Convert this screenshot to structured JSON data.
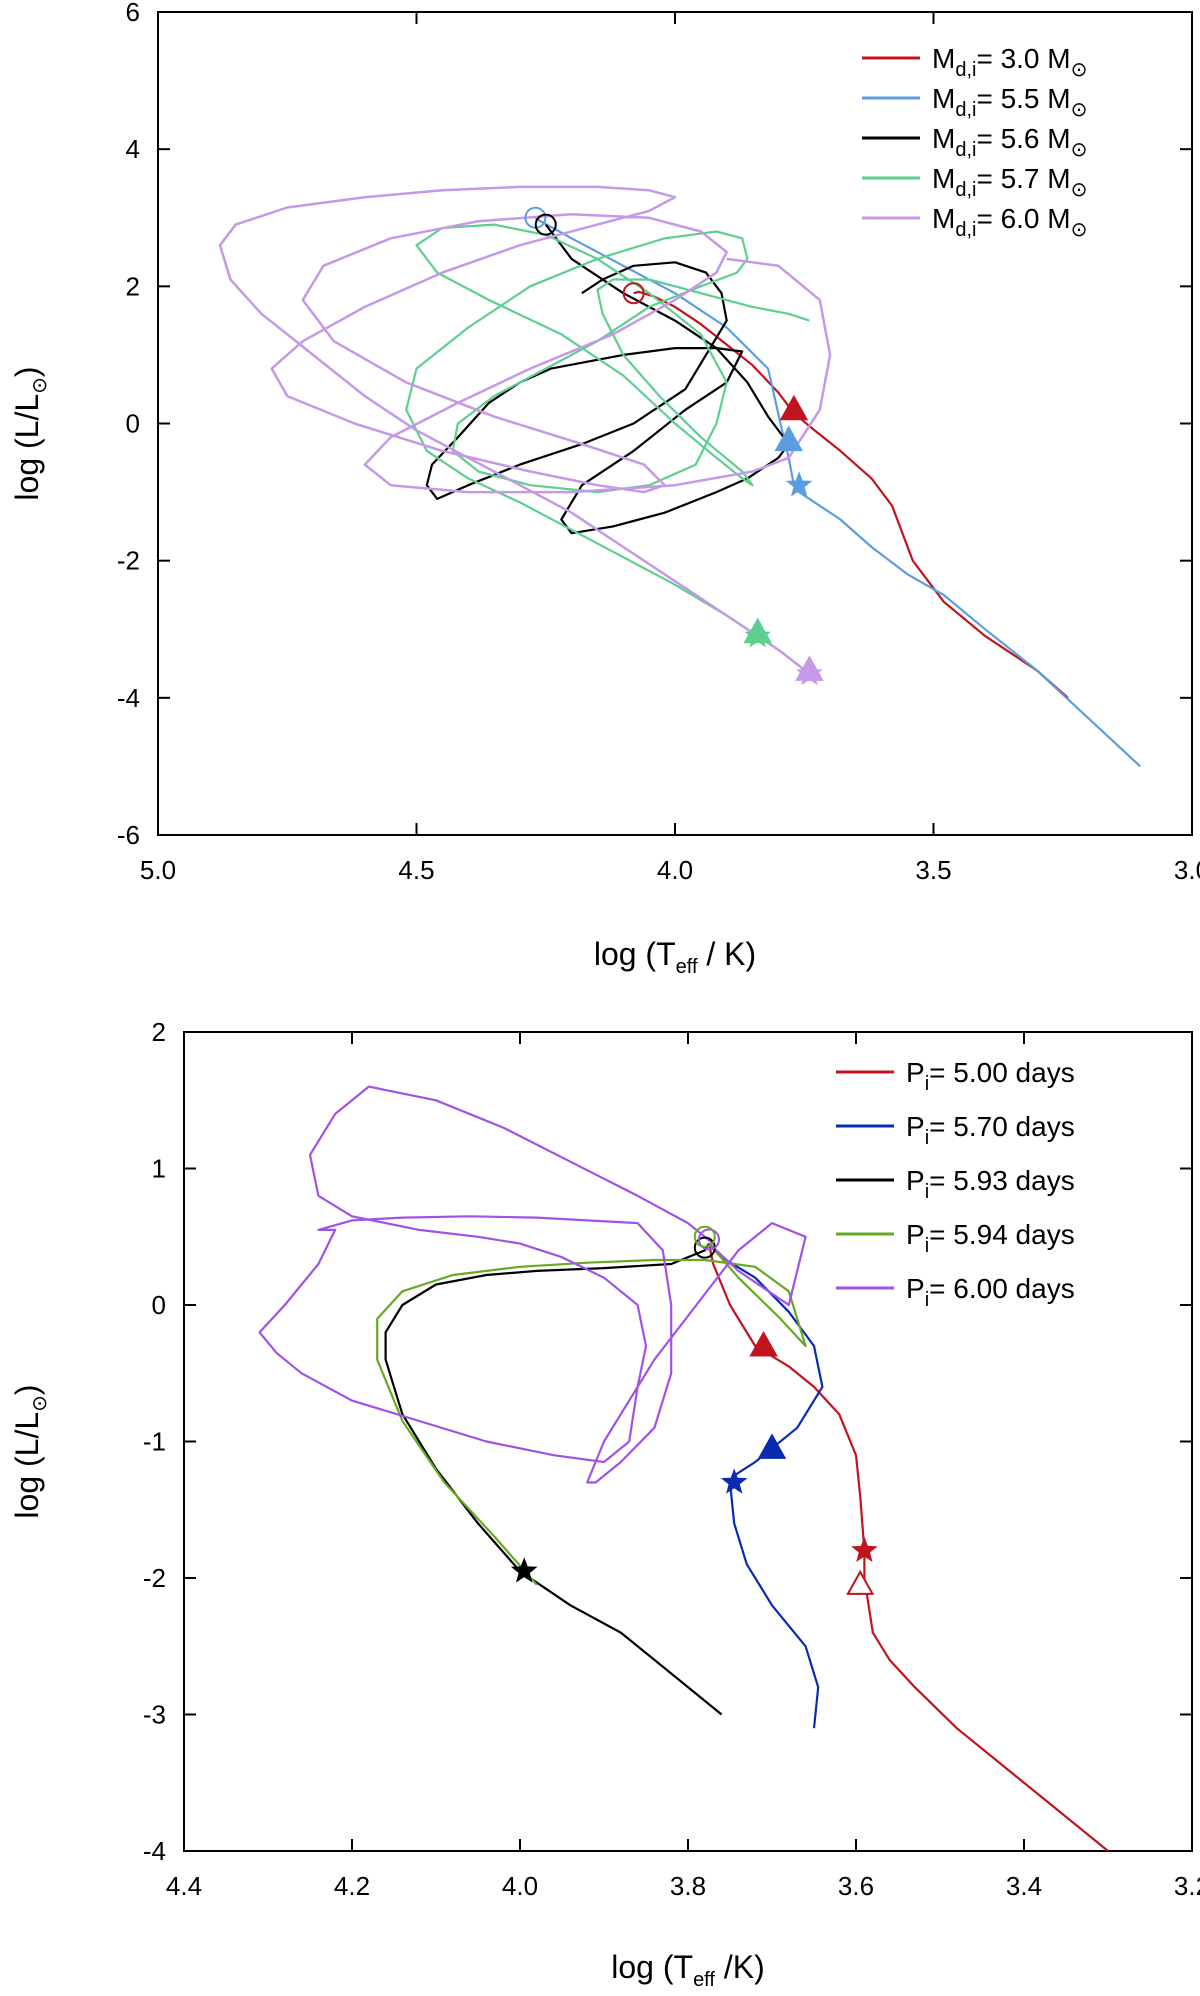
{
  "chart_data": [
    {
      "type": "line",
      "title": "",
      "xlabel": {
        "main": "log (T",
        "sub": "eff",
        "tail": " / K)"
      },
      "ylabel": {
        "main": "log (L/L",
        "sub": "⊙",
        "tail": ")"
      },
      "xlim": [
        5.0,
        3.0
      ],
      "ylim": [
        -6,
        6
      ],
      "xticks": [
        5.0,
        4.5,
        4.0,
        3.5,
        3.0
      ],
      "xtick_labels": [
        "5.0",
        "4.5",
        "4.0",
        "3.5",
        "3.0"
      ],
      "yticks": [
        -6,
        -4,
        -2,
        0,
        2,
        4,
        6
      ],
      "ytick_labels": [
        "-6",
        "-4",
        "-2",
        "0",
        "2",
        "4",
        "6"
      ],
      "legend_position": "top-right",
      "series": [
        {
          "name": "M = 3.0 M",
          "label_main": "M",
          "label_sub": "d,i",
          "label_mid": "= 3.0 M",
          "label_sub2": "⊙",
          "label_end": "",
          "color": "#c0141e",
          "x": [
            3.24,
            3.3,
            3.4,
            3.48,
            3.54,
            3.58,
            3.62,
            3.68,
            3.73,
            3.77,
            3.8,
            3.85,
            3.9,
            3.95,
            4.0,
            4.04,
            4.07,
            4.08
          ],
          "y": [
            -4.0,
            -3.6,
            -3.1,
            -2.6,
            -2.0,
            -1.2,
            -0.8,
            -0.4,
            -0.1,
            0.15,
            0.45,
            0.85,
            1.15,
            1.45,
            1.7,
            1.85,
            1.92,
            1.9
          ]
        },
        {
          "name": "M = 5.5 M",
          "label_main": "M",
          "label_sub": "d,i",
          "label_mid": "= 5.5 M",
          "label_sub2": "⊙",
          "label_end": "",
          "color": "#5b9ee0",
          "x": [
            3.1,
            3.2,
            3.3,
            3.4,
            3.48,
            3.55,
            3.62,
            3.68,
            3.72,
            3.76,
            3.77,
            3.78,
            3.79,
            3.82,
            3.9,
            4.0,
            4.1,
            4.2,
            4.26,
            4.27
          ],
          "y": [
            -5.0,
            -4.3,
            -3.6,
            -3.0,
            -2.5,
            -2.2,
            -1.8,
            -1.4,
            -1.2,
            -1.0,
            -0.9,
            -0.5,
            -0.2,
            0.8,
            1.4,
            1.9,
            2.3,
            2.7,
            2.95,
            3.0
          ]
        },
        {
          "name": "M = 5.6 M",
          "label_main": "M",
          "label_sub": "d,i",
          "label_mid": "= 5.6 M",
          "label_sub2": "⊙",
          "label_end": "",
          "color": "#000000",
          "x": [
            4.25,
            4.2,
            4.1,
            4.0,
            3.92,
            3.86,
            3.82,
            3.79,
            3.78,
            3.8,
            3.86,
            3.92,
            4.02,
            4.12,
            4.2,
            4.22,
            4.18,
            4.08,
            3.98,
            3.9,
            3.88,
            3.87,
            3.92,
            4.0,
            4.1,
            4.24,
            4.3,
            4.36,
            4.42,
            4.47,
            4.48,
            4.46,
            4.4,
            4.3,
            4.18,
            4.08,
            3.98,
            3.94,
            3.9,
            3.91,
            3.94,
            4.0,
            4.08,
            4.14,
            4.18
          ],
          "y": [
            2.9,
            2.4,
            1.9,
            1.5,
            1.1,
            0.6,
            0.1,
            -0.2,
            -0.3,
            -0.5,
            -0.8,
            -1.0,
            -1.3,
            -1.5,
            -1.6,
            -1.4,
            -0.9,
            -0.4,
            0.2,
            0.6,
            0.9,
            1.05,
            1.1,
            1.1,
            1.0,
            0.8,
            0.6,
            0.3,
            -0.2,
            -0.6,
            -0.9,
            -1.1,
            -0.9,
            -0.6,
            -0.3,
            0.0,
            0.5,
            1.0,
            1.5,
            1.9,
            2.2,
            2.35,
            2.3,
            2.1,
            1.9
          ]
        },
        {
          "name": "M = 5.7 M",
          "label_main": "M",
          "label_sub": "d,i",
          "label_mid": "= 5.7 M",
          "label_sub2": "⊙",
          "label_end": "",
          "color": "#5dcf8f",
          "x": [
            3.84,
            3.9,
            4.0,
            4.1,
            4.2,
            4.3,
            4.4,
            4.48,
            4.52,
            4.5,
            4.4,
            4.28,
            4.15,
            4.02,
            3.92,
            3.87,
            3.86,
            3.88,
            3.95,
            4.05,
            4.15,
            4.25,
            4.35,
            4.42,
            4.43,
            4.38,
            4.28,
            4.15,
            4.05,
            3.96,
            3.92,
            3.9,
            3.95,
            4.05,
            4.15,
            4.25,
            4.35,
            4.45,
            4.5,
            4.46,
            4.36,
            4.22,
            4.1,
            4.0,
            3.92,
            3.87,
            3.85,
            3.87,
            3.95,
            4.03,
            4.1,
            4.14,
            4.15,
            4.12,
            4.05,
            3.95,
            3.85,
            3.78,
            3.74
          ],
          "y": [
            -3.1,
            -2.8,
            -2.35,
            -1.95,
            -1.55,
            -1.15,
            -0.8,
            -0.4,
            0.2,
            0.8,
            1.4,
            2.0,
            2.4,
            2.7,
            2.8,
            2.7,
            2.4,
            2.2,
            2.0,
            1.7,
            1.2,
            0.8,
            0.4,
            0.0,
            -0.4,
            -0.7,
            -0.9,
            -1.0,
            -0.9,
            -0.6,
            0.0,
            0.6,
            1.3,
            1.9,
            2.4,
            2.75,
            2.9,
            2.85,
            2.6,
            2.2,
            1.8,
            1.3,
            0.7,
            0.0,
            -0.5,
            -0.8,
            -0.9,
            -0.7,
            -0.2,
            0.4,
            1.0,
            1.6,
            1.95,
            2.1,
            2.1,
            1.9,
            1.7,
            1.6,
            1.5
          ]
        },
        {
          "name": "M = 6.0 M",
          "label_main": "M",
          "label_sub": "d,i",
          "label_mid": "= 6.0 M",
          "label_sub2": "⊙",
          "label_end": "",
          "color": "#c598e8",
          "x": [
            3.74,
            3.8,
            3.9,
            4.0,
            4.1,
            4.2,
            4.3,
            4.4,
            4.5,
            4.6,
            4.7,
            4.8,
            4.86,
            4.88,
            4.85,
            4.75,
            4.6,
            4.45,
            4.3,
            4.15,
            4.05,
            4.0,
            4.05,
            4.15,
            4.3,
            4.45,
            4.6,
            4.72,
            4.78,
            4.75,
            4.62,
            4.45,
            4.28,
            4.15,
            4.06,
            4.02,
            4.06,
            4.18,
            4.35,
            4.52,
            4.66,
            4.72,
            4.68,
            4.55,
            4.38,
            4.2,
            4.05,
            3.95,
            3.9,
            3.92,
            4.0,
            4.12,
            4.28,
            4.42,
            4.55,
            4.6,
            4.55,
            4.4,
            4.2,
            4.0,
            3.85,
            3.78,
            3.72,
            3.7,
            3.72,
            3.8,
            3.9
          ],
          "y": [
            -3.65,
            -3.3,
            -2.8,
            -2.3,
            -1.8,
            -1.3,
            -0.9,
            -0.5,
            -0.1,
            0.4,
            1.0,
            1.6,
            2.1,
            2.6,
            2.9,
            3.15,
            3.3,
            3.4,
            3.45,
            3.45,
            3.4,
            3.3,
            3.1,
            2.9,
            2.6,
            2.2,
            1.7,
            1.2,
            0.8,
            0.4,
            0.0,
            -0.4,
            -0.7,
            -0.9,
            -1.0,
            -0.9,
            -0.6,
            -0.3,
            0.1,
            0.6,
            1.2,
            1.8,
            2.3,
            2.7,
            2.95,
            3.05,
            3.0,
            2.8,
            2.5,
            2.2,
            1.8,
            1.3,
            0.8,
            0.3,
            -0.2,
            -0.6,
            -0.9,
            -1.0,
            -1.0,
            -0.9,
            -0.7,
            -0.5,
            0.2,
            1.0,
            1.8,
            2.3,
            2.4
          ]
        }
      ],
      "markers": [
        {
          "series": 0,
          "shape": "circle-open",
          "x": 4.08,
          "y": 1.9
        },
        {
          "series": 0,
          "shape": "triangle",
          "x": 3.77,
          "y": 0.2
        },
        {
          "series": 1,
          "shape": "circle-open",
          "x": 4.27,
          "y": 3.0
        },
        {
          "series": 1,
          "shape": "triangle",
          "x": 3.78,
          "y": -0.25
        },
        {
          "series": 1,
          "shape": "star",
          "x": 3.76,
          "y": -0.9
        },
        {
          "series": 2,
          "shape": "circle-open",
          "x": 4.25,
          "y": 2.9
        },
        {
          "series": 3,
          "shape": "star",
          "x": 3.84,
          "y": -3.1
        },
        {
          "series": 3,
          "shape": "triangle",
          "x": 3.84,
          "y": -3.05
        },
        {
          "series": 4,
          "shape": "star",
          "x": 3.74,
          "y": -3.65
        },
        {
          "series": 4,
          "shape": "triangle",
          "x": 3.74,
          "y": -3.6
        }
      ]
    },
    {
      "type": "line",
      "title": "",
      "xlabel": {
        "main": "log (T",
        "sub": "eff",
        "tail": " /K)"
      },
      "ylabel": {
        "main": "log (L/L",
        "sub": "⊙",
        "tail": ")"
      },
      "xlim": [
        4.4,
        3.2
      ],
      "ylim": [
        -4,
        2
      ],
      "xticks": [
        4.4,
        4.2,
        4.0,
        3.8,
        3.6,
        3.4,
        3.2
      ],
      "xtick_labels": [
        "4.4",
        "4.2",
        "4.0",
        "3.8",
        "3.6",
        "3.4",
        "3.2"
      ],
      "yticks": [
        -4,
        -3,
        -2,
        -1,
        0,
        1,
        2
      ],
      "ytick_labels": [
        "-4",
        "-3",
        "-2",
        "-1",
        "0",
        "1",
        "2"
      ],
      "legend_position": "top-right",
      "series": [
        {
          "name": "P = 5.00 days",
          "label_main": "P",
          "label_sub": "i",
          "label_mid": "= 5.00 days",
          "label_sub2": "",
          "label_end": "",
          "color": "#c0141e",
          "x": [
            3.3,
            3.36,
            3.42,
            3.48,
            3.53,
            3.56,
            3.58,
            3.585,
            3.59,
            3.59,
            3.595,
            3.6,
            3.62,
            3.65,
            3.68,
            3.72,
            3.75,
            3.77,
            3.775
          ],
          "y": [
            -4.0,
            -3.7,
            -3.4,
            -3.1,
            -2.8,
            -2.6,
            -2.4,
            -2.2,
            -2.0,
            -1.8,
            -1.4,
            -1.1,
            -0.8,
            -0.6,
            -0.45,
            -0.3,
            0.0,
            0.3,
            0.45
          ]
        },
        {
          "name": "P = 5.70 days",
          "label_main": "P",
          "label_sub": "i",
          "label_mid": "= 5.70 days",
          "label_sub2": "",
          "label_end": "",
          "color": "#0a2ab0",
          "x": [
            3.65,
            3.645,
            3.66,
            3.7,
            3.73,
            3.745,
            3.75,
            3.745,
            3.72,
            3.7,
            3.67,
            3.64,
            3.65,
            3.68,
            3.72,
            3.76,
            3.775
          ],
          "y": [
            -3.1,
            -2.8,
            -2.5,
            -2.2,
            -1.9,
            -1.6,
            -1.3,
            -1.25,
            -1.15,
            -1.05,
            -0.9,
            -0.6,
            -0.3,
            -0.05,
            0.2,
            0.35,
            0.45
          ]
        },
        {
          "name": "P = 5.93 days",
          "label_main": "P",
          "label_sub": "i",
          "label_mid": "= 5.93 days",
          "label_sub2": "",
          "label_end": "",
          "color": "#000000",
          "x": [
            3.76,
            3.82,
            3.88,
            3.94,
            4.0,
            4.05,
            4.1,
            4.14,
            4.16,
            4.16,
            4.14,
            4.1,
            4.04,
            3.98,
            3.9,
            3.82,
            3.78,
            3.775
          ],
          "y": [
            -3.0,
            -2.7,
            -2.4,
            -2.2,
            -1.95,
            -1.6,
            -1.2,
            -0.8,
            -0.4,
            -0.2,
            0.0,
            0.15,
            0.22,
            0.25,
            0.27,
            0.3,
            0.4,
            0.45
          ]
        },
        {
          "name": "P = 5.94 days",
          "label_main": "P",
          "label_sub": "i",
          "label_mid": "= 5.94 days",
          "label_sub2": "",
          "label_end": "",
          "color": "#66aa22",
          "x": [
            3.98,
            4.03,
            4.09,
            4.14,
            4.17,
            4.17,
            4.14,
            4.08,
            4.0,
            3.92,
            3.84,
            3.78,
            3.72,
            3.68,
            3.66,
            3.69,
            3.74,
            3.775
          ],
          "y": [
            -2.05,
            -1.7,
            -1.3,
            -0.85,
            -0.4,
            -0.1,
            0.1,
            0.22,
            0.28,
            0.31,
            0.33,
            0.33,
            0.28,
            0.1,
            -0.3,
            -0.1,
            0.2,
            0.45
          ]
        },
        {
          "name": "P = 6.00 days",
          "label_main": "P",
          "label_sub": "i",
          "label_mid": "= 6.00 days",
          "label_sub2": "",
          "label_end": "",
          "color": "#a152e6",
          "x": [
            3.77,
            3.8,
            3.86,
            3.94,
            4.02,
            4.1,
            4.18,
            4.22,
            4.25,
            4.24,
            4.2,
            4.12,
            4.05,
            4.0,
            3.95,
            3.9,
            3.86,
            3.85,
            3.86,
            3.87,
            3.9,
            3.96,
            4.04,
            4.12,
            4.2,
            4.26,
            4.29,
            4.31,
            4.28,
            4.24,
            4.22,
            4.24,
            4.2,
            4.14,
            4.06,
            3.98,
            3.92,
            3.86,
            3.83,
            3.82,
            3.82,
            3.84,
            3.88,
            3.91,
            3.92,
            3.9,
            3.84,
            3.79,
            3.74,
            3.7,
            3.66,
            3.68,
            3.74,
            3.775
          ],
          "y": [
            0.45,
            0.6,
            0.8,
            1.05,
            1.3,
            1.5,
            1.6,
            1.4,
            1.1,
            0.8,
            0.65,
            0.55,
            0.5,
            0.45,
            0.35,
            0.2,
            0.0,
            -0.3,
            -0.6,
            -1.0,
            -1.15,
            -1.1,
            -1.0,
            -0.85,
            -0.7,
            -0.5,
            -0.35,
            -0.2,
            0.0,
            0.3,
            0.55,
            0.55,
            0.62,
            0.64,
            0.65,
            0.64,
            0.62,
            0.6,
            0.4,
            0.0,
            -0.5,
            -0.9,
            -1.15,
            -1.3,
            -1.3,
            -1.0,
            -0.4,
            0.0,
            0.4,
            0.6,
            0.5,
            0.0,
            0.25,
            0.45
          ]
        }
      ],
      "markers": [
        {
          "series": 0,
          "shape": "triangle",
          "x": 3.71,
          "y": -0.3
        },
        {
          "series": 0,
          "shape": "star",
          "x": 3.59,
          "y": -1.8
        },
        {
          "series": 0,
          "shape": "triangle-open",
          "x": 3.595,
          "y": -2.05
        },
        {
          "series": 1,
          "shape": "triangle",
          "x": 3.7,
          "y": -1.05
        },
        {
          "series": 1,
          "shape": "star",
          "x": 3.745,
          "y": -1.3
        },
        {
          "series": 2,
          "shape": "star",
          "x": 3.995,
          "y": -1.95
        },
        {
          "series": 2,
          "shape": "circle-open",
          "x": 3.78,
          "y": 0.42
        },
        {
          "series": 4,
          "shape": "circle-open",
          "x": 3.775,
          "y": 0.48
        },
        {
          "series": 3,
          "shape": "circle-open",
          "x": 3.78,
          "y": 0.5
        }
      ]
    }
  ]
}
